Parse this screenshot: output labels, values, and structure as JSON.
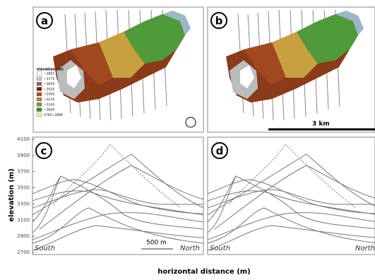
{
  "panels": [
    {
      "label": "a",
      "legend": {
        "title": "elevation (m)",
        "items": [
          "~3851",
          "~3775",
          "~3650",
          "~3525",
          "~3395",
          "~3270",
          "~3145",
          "~3020",
          "2765~2890"
        ]
      }
    },
    {
      "label": "b",
      "scale_bar": "3 km"
    },
    {
      "label": "c",
      "y_ticks": [
        4100,
        3900,
        3700,
        3500,
        3300,
        3100,
        2900,
        2700
      ],
      "south": "South",
      "north": "North",
      "scale_bar": "500 m"
    },
    {
      "label": "d",
      "south": "South",
      "north": "North"
    }
  ],
  "y_axis_label": "elevation (m)",
  "x_axis_label": "horizontal distance (m)"
}
